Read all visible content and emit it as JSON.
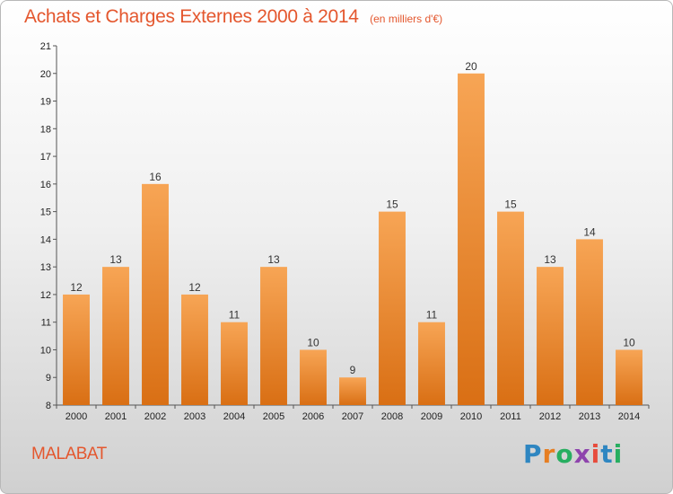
{
  "header": {
    "title": "Achats et Charges Externes 2000 à 2014",
    "unit": "(en milliers d'€)"
  },
  "footer": {
    "commune": "MALABAT",
    "logo_text": "Proxiti"
  },
  "colors": {
    "title": "#e4572e",
    "bar_top": "#f7a555",
    "bar_bottom": "#d96f14",
    "axis": "#555555"
  },
  "chart_data": {
    "type": "bar",
    "title": "Achats et Charges Externes 2000 à 2014",
    "subtitle": "(en milliers d'€)",
    "categories": [
      "2000",
      "2001",
      "2002",
      "2003",
      "2004",
      "2005",
      "2006",
      "2007",
      "2008",
      "2009",
      "2010",
      "2011",
      "2012",
      "2013",
      "2014"
    ],
    "values": [
      12,
      13,
      16,
      12,
      11,
      13,
      10,
      9,
      15,
      11,
      20,
      15,
      13,
      14,
      10
    ],
    "ylim": [
      8,
      21
    ],
    "yticks": [
      8,
      9,
      10,
      11,
      12,
      13,
      14,
      15,
      16,
      17,
      18,
      19,
      20,
      21
    ],
    "grid": false,
    "xlabel": "",
    "ylabel": ""
  }
}
